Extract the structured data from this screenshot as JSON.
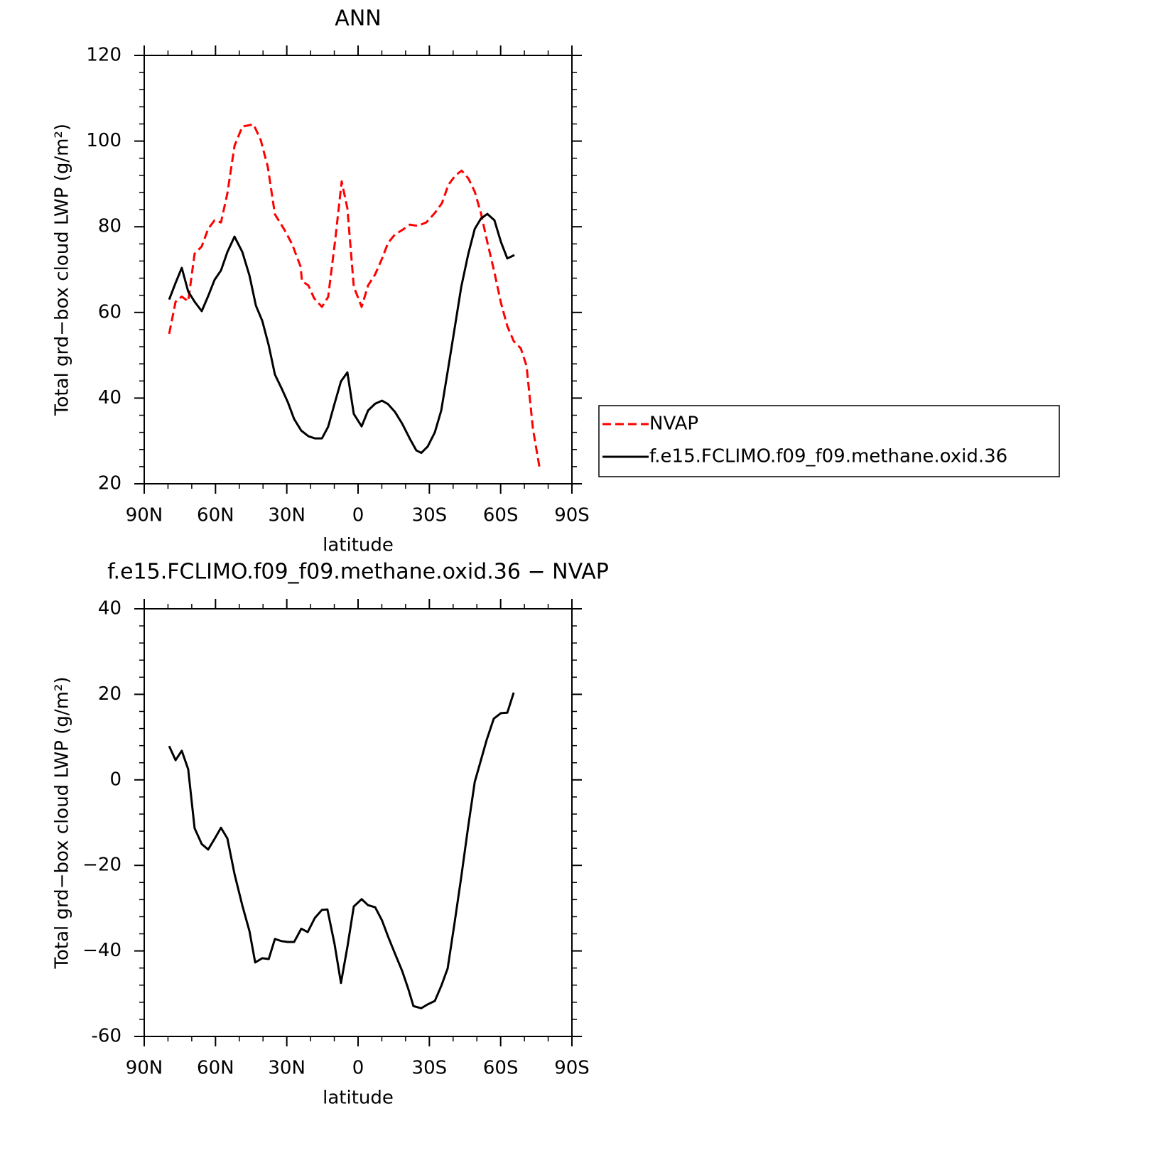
{
  "chart_data": [
    {
      "type": "line",
      "title": "ANN",
      "xlabel": "latitude",
      "ylabel": "Total grd−box cloud LWP (g/m²)",
      "xlim": [
        90,
        -90
      ],
      "xticks": [
        {
          "value": 90,
          "label": "90N"
        },
        {
          "value": 60,
          "label": "60N"
        },
        {
          "value": 30,
          "label": "30N"
        },
        0,
        {
          "value": -30,
          "label": "30S"
        },
        {
          "value": -60,
          "label": "60S"
        },
        {
          "value": -90,
          "label": "90S"
        }
      ],
      "xminorticks": [
        80,
        70,
        50,
        40,
        20,
        10,
        -10,
        -20,
        -40,
        -50,
        -70,
        -80
      ],
      "ylim": [
        20,
        120
      ],
      "yticks": [
        20,
        40,
        60,
        80,
        100,
        120
      ],
      "yminorticks": [
        24,
        28,
        32,
        36,
        44,
        48,
        52,
        56,
        64,
        68,
        72,
        76,
        84,
        88,
        92,
        96,
        104,
        108,
        112,
        116
      ],
      "legend": "outside right",
      "series": [
        {
          "name": "NVAP",
          "color": "#ff0000",
          "linestyle": "dashed",
          "x": [
            79.5,
            76.8,
            74.2,
            71.5,
            68.8,
            65.8,
            63.1,
            60.4,
            57.7,
            55.0,
            52.0,
            48.7,
            44.0,
            41.0,
            38.0,
            35.0,
            31.1,
            27.8,
            24.2,
            23.6,
            20.9,
            18.5,
            15.2,
            12.6,
            9.6,
            6.9,
            4.5,
            1.8,
            -1.5,
            -4.2,
            -7.2,
            -10.1,
            -12.6,
            -15.5,
            -18.5,
            -21.8,
            -25.1,
            -28.7,
            -32.3,
            -35.3,
            -38.0,
            -41.0,
            -43.6,
            -46.4,
            -49.1,
            -51.7,
            -54.4,
            -57.4,
            -60.1,
            -62.8,
            -65.5,
            -68.5,
            -70.9,
            -73.6,
            -76.3
          ],
          "values": [
            55,
            62.5,
            63.7,
            62.6,
            73.7,
            75.4,
            79.5,
            81.5,
            81,
            87.8,
            98.9,
            103.4,
            103.9,
            100.3,
            94,
            82.9,
            79.4,
            76,
            70.7,
            67.3,
            66.3,
            63.3,
            61.3,
            63.6,
            77,
            90.6,
            84.3,
            66,
            61.3,
            66.3,
            68.9,
            72.6,
            76.2,
            78.2,
            79.2,
            80.5,
            80.2,
            81,
            83.2,
            85.5,
            89.8,
            92,
            93.1,
            91.3,
            88.2,
            83.2,
            76.4,
            69.3,
            62.3,
            56.8,
            53.3,
            51.6,
            47.5,
            32.8,
            24
          ]
        },
        {
          "name": "f.e15.FCLIMO.f09_f09.methane.oxid.36",
          "color": "#000000",
          "linestyle": "solid",
          "x": [
            79.5,
            76.8,
            74.2,
            71.5,
            68.8,
            65.8,
            63.1,
            60.4,
            57.7,
            55.0,
            52.0,
            48.7,
            45.7,
            43.0,
            40.3,
            37.6,
            35.0,
            32.3,
            29.6,
            26.9,
            23.9,
            20.9,
            18.2,
            15.2,
            12.6,
            9.9,
            7.2,
            4.5,
            1.8,
            -1.5,
            -4.2,
            -7.2,
            -10.1,
            -12.6,
            -15.5,
            -18.5,
            -21.8,
            -24.5,
            -26.6,
            -29.3,
            -32.3,
            -35.0,
            -37.7,
            -40.7,
            -43.4,
            -46.4,
            -49.1,
            -51.7,
            -54.4,
            -57.4,
            -60.1,
            -62.8,
            -65.8
          ],
          "values": [
            63,
            66.9,
            70.4,
            64.9,
            62.5,
            60.3,
            63.8,
            67.6,
            69.8,
            74.1,
            77.7,
            74.1,
            68.6,
            61.6,
            58,
            52.3,
            45.5,
            42.4,
            39.1,
            35.1,
            32.4,
            31.1,
            30.6,
            30.6,
            33.3,
            38.7,
            43.9,
            46,
            36.3,
            33.4,
            37.1,
            38.7,
            39.4,
            38.6,
            36.8,
            34.1,
            30.5,
            27.8,
            27.2,
            28.7,
            32,
            37.1,
            46.2,
            56.5,
            65.9,
            73.7,
            79.5,
            81.9,
            83,
            81.5,
            76.5,
            72.6,
            73.4
          ]
        }
      ]
    },
    {
      "type": "line",
      "title": "f.e15.FCLIMO.f09_f09.methane.oxid.36 − NVAP",
      "xlabel": "latitude",
      "ylabel": "Total grd−box cloud LWP (g/m²)",
      "xlim": [
        90,
        -90
      ],
      "xticks": [
        {
          "value": 90,
          "label": "90N"
        },
        {
          "value": 60,
          "label": "60N"
        },
        {
          "value": 30,
          "label": "30N"
        },
        0,
        {
          "value": -30,
          "label": "30S"
        },
        {
          "value": -60,
          "label": "60S"
        },
        {
          "value": -90,
          "label": "90S"
        }
      ],
      "xminorticks": [
        80,
        70,
        50,
        40,
        20,
        10,
        -10,
        -20,
        -40,
        -50,
        -70,
        -80
      ],
      "ylim": [
        -60,
        40
      ],
      "yticks": [
        -60,
        {
          "value": -40,
          "label": "−40"
        },
        {
          "value": -20,
          "label": "−20"
        },
        0,
        20,
        40
      ],
      "yticks_fix": null,
      "yminorticks": [
        -56,
        -52,
        -48,
        -44,
        -36,
        -32,
        -28,
        -24,
        -16,
        -12,
        -8,
        -4,
        4,
        8,
        12,
        16,
        24,
        28,
        32,
        36
      ],
      "series": [
        {
          "color": "#000000",
          "linestyle": "solid",
          "x": [
            79.5,
            76.8,
            74.2,
            71.5,
            68.8,
            65.8,
            63.1,
            60.4,
            57.7,
            55.0,
            52.0,
            48.7,
            45.7,
            43.3,
            40.3,
            37.6,
            35.0,
            32.3,
            29.6,
            26.9,
            23.9,
            21.2,
            18.2,
            15.2,
            12.9,
            9.9,
            7.2,
            4.5,
            1.8,
            -1.5,
            -4.2,
            -7.2,
            -10.1,
            -12.6,
            -15.5,
            -18.5,
            -21.2,
            -23.3,
            -26.6,
            -29.3,
            -32.3,
            -35.0,
            -37.7,
            -40.7,
            -43.4,
            -46.4,
            -49.1,
            -54.1,
            -57.1,
            -60.1,
            -62.8,
            -65.5
          ],
          "values": [
            7.9,
            4.6,
            6.8,
            2.5,
            -11.3,
            -15,
            -16.3,
            -13.8,
            -11.2,
            -13.7,
            -22,
            -29.4,
            -35.4,
            -42.7,
            -41.7,
            -41.9,
            -37.2,
            -37.7,
            -37.9,
            -37.9,
            -34.8,
            -35.6,
            -32.3,
            -30.4,
            -30.3,
            -38.4,
            -47.5,
            -39.1,
            -29.6,
            -27.9,
            -29.3,
            -29.8,
            -32.9,
            -36.6,
            -40.6,
            -44.6,
            -49,
            -52.9,
            -53.4,
            -52.5,
            -51.7,
            -48.2,
            -44.1,
            -33.1,
            -22.8,
            -10.7,
            -0.5,
            9.3,
            14.3,
            15.6,
            15.7,
            20.4
          ]
        }
      ]
    }
  ]
}
